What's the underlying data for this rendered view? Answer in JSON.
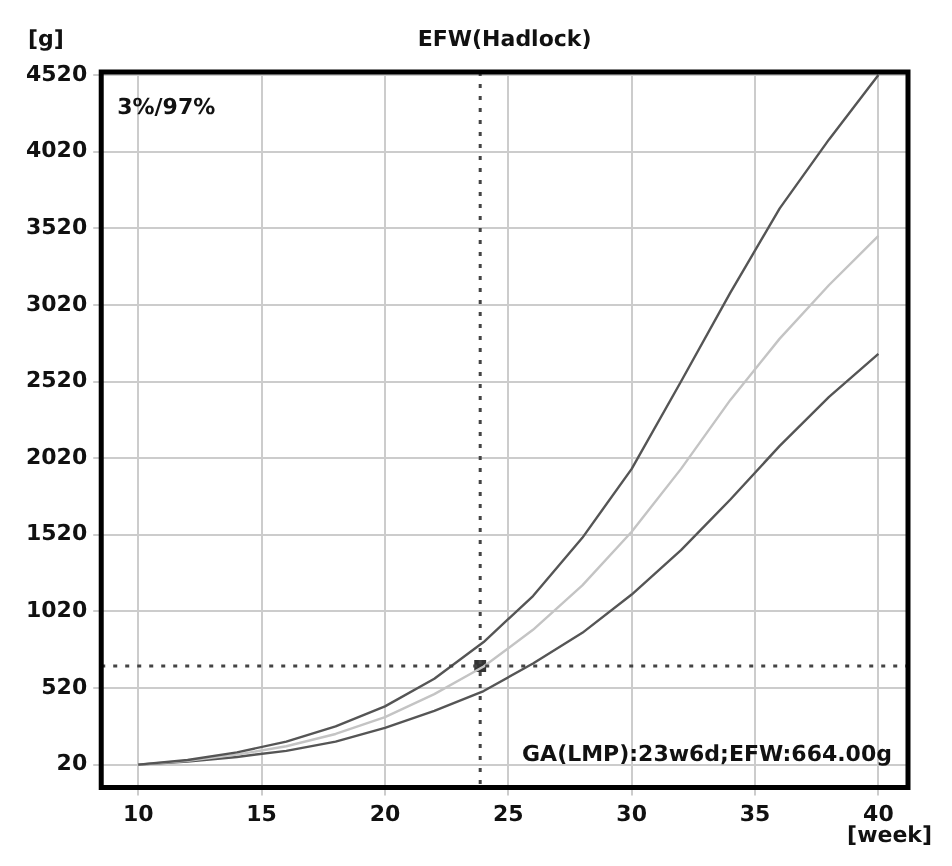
{
  "chart_data": {
    "type": "line",
    "title": "EFW(Hadlock)",
    "ylabel": "[g]",
    "xlabel": "[week]",
    "xlim": [
      8.5,
      41.2
    ],
    "xticks": [
      10,
      15,
      20,
      25,
      30,
      35,
      40
    ],
    "ylim": [
      -130,
      4540
    ],
    "yticks": [
      20,
      520,
      1020,
      1520,
      2020,
      2520,
      3020,
      3520,
      4020,
      4520
    ],
    "x": [
      10,
      12,
      14,
      16,
      18,
      20,
      22,
      24,
      26,
      28,
      30,
      32,
      34,
      36,
      38,
      40
    ],
    "series": [
      {
        "color": "#555555",
        "values": [
          20,
          50,
          100,
          170,
          270,
          400,
          580,
          820,
          1120,
          1500,
          1950,
          2520,
          3100,
          3650,
          4100,
          4520
        ]
      },
      {
        "color": "#c4c4c4",
        "values": [
          20,
          45,
          85,
          140,
          220,
          330,
          480,
          660,
          900,
          1190,
          1540,
          1950,
          2400,
          2800,
          3150,
          3470
        ]
      },
      {
        "color": "#555555",
        "values": [
          20,
          40,
          70,
          110,
          170,
          260,
          370,
          500,
          680,
          880,
          1130,
          1420,
          1750,
          2100,
          2420,
          2700
        ]
      },
      {
        "type": "scatter",
        "marker": "square",
        "color": "#333333",
        "x": [
          23.86
        ],
        "values": [
          664
        ]
      }
    ],
    "ref_lines": [
      {
        "axis": "x",
        "value": 23.86,
        "color": "#444444",
        "line_style": "dotted"
      },
      {
        "axis": "y",
        "value": 664,
        "color": "#444444",
        "line_style": "dotted"
      }
    ],
    "annotations": [
      "3%/97%",
      "GA(LMP):23w6d;EFW:664.00g"
    ],
    "grid": true,
    "legend": false,
    "marker": "none",
    "line_style": "solid"
  }
}
